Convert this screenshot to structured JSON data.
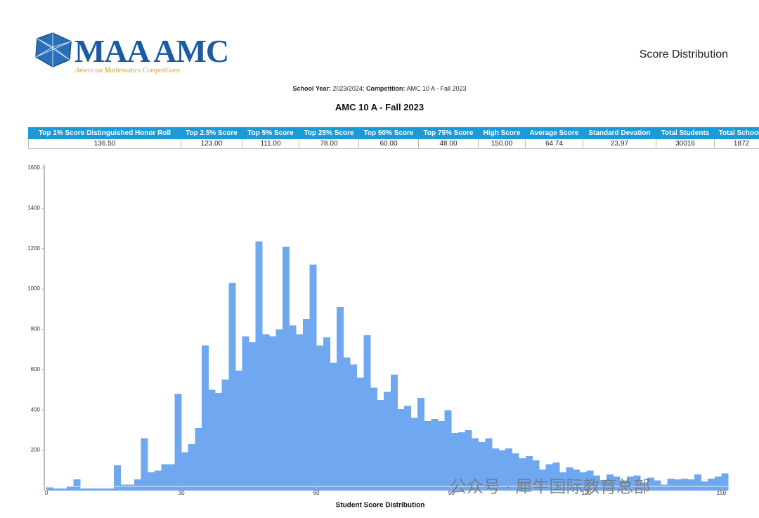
{
  "header": {
    "logo_title": "MAA AMC",
    "logo_subtitle": "American Mathematics Competitions",
    "page_title": "Score Distribution"
  },
  "info": {
    "school_year_label": "School Year:",
    "school_year": "2023/2024;",
    "competition_label": "Competition:",
    "competition": "AMC 10 A - Fall 2023"
  },
  "table": {
    "columns": [
      "Top 1% Score Distinguished Honor Roll",
      "Top 2.5% Score",
      "Top 5% Score",
      "Top 25% Score",
      "Top 50% Score",
      "Top 75% Score",
      "High Score",
      "Average Score",
      "Standard Devation",
      "Total Students",
      "Total Schools"
    ],
    "rows": [
      [
        "136.50",
        "123.00",
        "111.00",
        "78.00",
        "60.00",
        "48.00",
        "150.00",
        "64.74",
        "23.97",
        "30016",
        "1872"
      ]
    ]
  },
  "chart_data": {
    "type": "histogram",
    "title": "AMC 10 A - Fall 2023",
    "x_label": "Student Score Distribution",
    "color": "#6fa8f0",
    "bins": [
      0,
      1.5,
      3,
      4.5,
      6,
      7.5,
      9,
      10.5,
      12,
      13.5,
      15,
      16.5,
      18,
      19.5,
      21,
      22.5,
      24,
      25.5,
      27,
      28.5,
      30,
      31.5,
      33,
      34.5,
      36,
      37.5,
      39,
      40.5,
      42,
      43.5,
      45,
      46.5,
      48,
      49.5,
      51,
      52.5,
      54,
      55.5,
      57,
      58.5,
      60,
      61.5,
      63,
      64.5,
      66,
      67.5,
      69,
      70.5,
      72,
      73.5,
      75,
      76.5,
      78,
      79.5,
      81,
      82.5,
      84,
      85.5,
      87,
      88.5,
      90,
      91.5,
      93,
      94.5,
      96,
      97.5,
      99,
      100.5,
      102,
      103.5,
      105,
      106.5,
      108,
      109.5,
      111,
      112.5,
      114,
      115.5,
      117,
      118.5,
      120,
      121.5,
      123,
      124.5,
      126,
      127.5,
      129,
      130.5,
      132,
      133.5,
      135,
      136.5,
      138,
      139.5,
      141,
      142.5,
      144,
      145.5,
      147,
      148.5,
      150,
      151.5
    ],
    "values": [
      15,
      10,
      10,
      20,
      55,
      10,
      10,
      10,
      10,
      10,
      125,
      30,
      30,
      55,
      260,
      90,
      100,
      130,
      130,
      480,
      190,
      230,
      310,
      720,
      500,
      485,
      550,
      1030,
      595,
      765,
      735,
      1235,
      775,
      765,
      800,
      1210,
      820,
      775,
      850,
      1120,
      720,
      760,
      635,
      910,
      660,
      625,
      560,
      770,
      510,
      450,
      490,
      575,
      405,
      420,
      360,
      460,
      345,
      355,
      345,
      400,
      285,
      290,
      300,
      260,
      240,
      260,
      210,
      200,
      210,
      185,
      160,
      170,
      150,
      105,
      130,
      140,
      90,
      115,
      105,
      90,
      100,
      75,
      50,
      80,
      70,
      50,
      70,
      75,
      40,
      65,
      50,
      30,
      60,
      55,
      60,
      55,
      80,
      45,
      60,
      70,
      85
    ],
    "xlim": [
      0,
      151.5
    ],
    "xticks": [
      0,
      30,
      60,
      90,
      120,
      150
    ],
    "ylim": [
      0,
      1600
    ],
    "yticks": [
      200,
      400,
      600,
      800,
      1000,
      1200,
      1400,
      1600
    ]
  },
  "watermark": "公众号 · 犀牛国际教育总部"
}
